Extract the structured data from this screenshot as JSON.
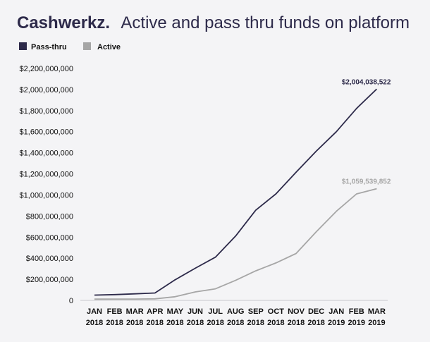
{
  "header": {
    "brand": "Cashwerkz.",
    "title": "Active and pass thru funds on platform"
  },
  "chart_data": {
    "type": "line",
    "title": "Active and pass thru funds on platform",
    "xlabel": "",
    "ylabel": "",
    "categories": [
      [
        "JAN",
        "2018"
      ],
      [
        "FEB",
        "2018"
      ],
      [
        "MAR",
        "2018"
      ],
      [
        "APR",
        "2018"
      ],
      [
        "MAY",
        "2018"
      ],
      [
        "JUN",
        "2018"
      ],
      [
        "JUL",
        "2018"
      ],
      [
        "AUG",
        "2018"
      ],
      [
        "SEP",
        "2018"
      ],
      [
        "OCT",
        "2018"
      ],
      [
        "NOV",
        "2018"
      ],
      [
        "DEC",
        "2018"
      ],
      [
        "JAN",
        "2019"
      ],
      [
        "FEB",
        "2019"
      ],
      [
        "MAR",
        "2019"
      ]
    ],
    "ylim": [
      0,
      2200000000
    ],
    "yticks": [
      0,
      200000000,
      400000000,
      600000000,
      800000000,
      1000000000,
      1200000000,
      1400000000,
      1600000000,
      1800000000,
      2000000000,
      2200000000
    ],
    "ytick_labels": [
      "0",
      "$200,000,000",
      "$400,000,000",
      "$600,000,000",
      "$800,000,000",
      "$1,000,000,000",
      "$1,200,000,000",
      "$1,400,000,000",
      "$1,600,000,000",
      "$1,800,000,000",
      "$2,000,000,000",
      "$2,200,000,000"
    ],
    "grid": false,
    "legend_position": "top-left",
    "series": [
      {
        "name": "Pass-thru",
        "color": "#2d2a4a",
        "values": [
          50000000,
          55000000,
          62000000,
          70000000,
          195000000,
          305000000,
          410000000,
          610000000,
          855000000,
          1010000000,
          1215000000,
          1415000000,
          1600000000,
          1820000000,
          2004038522
        ],
        "end_label": "$2,004,038,522"
      },
      {
        "name": "Active",
        "color": "#a6a6a6",
        "values": [
          12000000,
          13000000,
          13000000,
          15000000,
          35000000,
          80000000,
          110000000,
          190000000,
          280000000,
          355000000,
          445000000,
          650000000,
          845000000,
          1010000000,
          1059539852
        ],
        "end_label": "$1,059,539,852"
      }
    ]
  }
}
